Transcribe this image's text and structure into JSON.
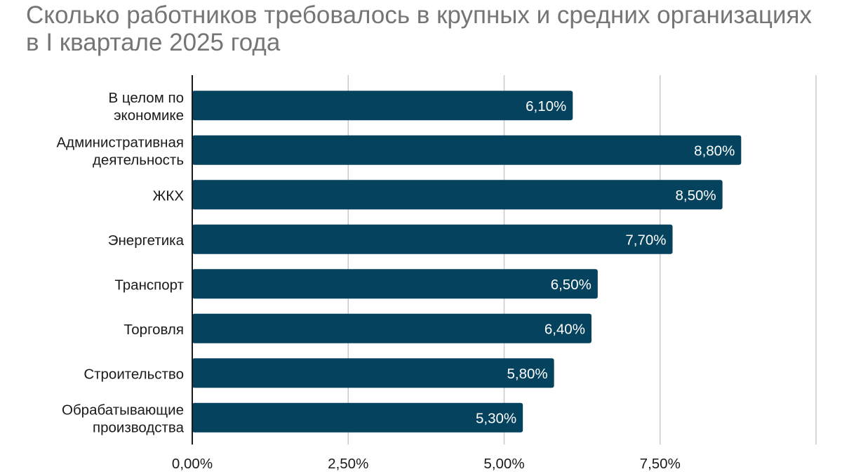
{
  "chart_data": {
    "type": "bar",
    "orientation": "horizontal",
    "title": "Сколько работников требовалось в крупных и средних организациях в I квартале 2025 года",
    "categories": [
      [
        "В целом по",
        "экономике"
      ],
      [
        "Административная",
        "деятельность"
      ],
      [
        "ЖКХ"
      ],
      [
        "Энергетика"
      ],
      [
        "Транспорт"
      ],
      [
        "Торговля"
      ],
      [
        "Строительство"
      ],
      [
        "Обрабатывающие",
        "производства"
      ]
    ],
    "values": [
      6.1,
      8.8,
      8.5,
      7.7,
      6.5,
      6.4,
      5.8,
      5.3
    ],
    "data_labels": [
      "6,10%",
      "8,80%",
      "8,50%",
      "7,70%",
      "6,50%",
      "6,40%",
      "5,80%",
      "5,30%"
    ],
    "x_ticks": [
      0,
      2.5,
      5,
      7.5,
      10
    ],
    "x_tick_labels": [
      "0,00%",
      "2,50%",
      "5,00%",
      "7,50%",
      ""
    ],
    "xlim": [
      0,
      10
    ],
    "grid": true,
    "legend": "none",
    "colors": {
      "bar": "#05425e",
      "grid": "#c8c8c8",
      "axis": "#1a1a1a",
      "title": "#757575",
      "data_label": "#ffffff"
    }
  }
}
